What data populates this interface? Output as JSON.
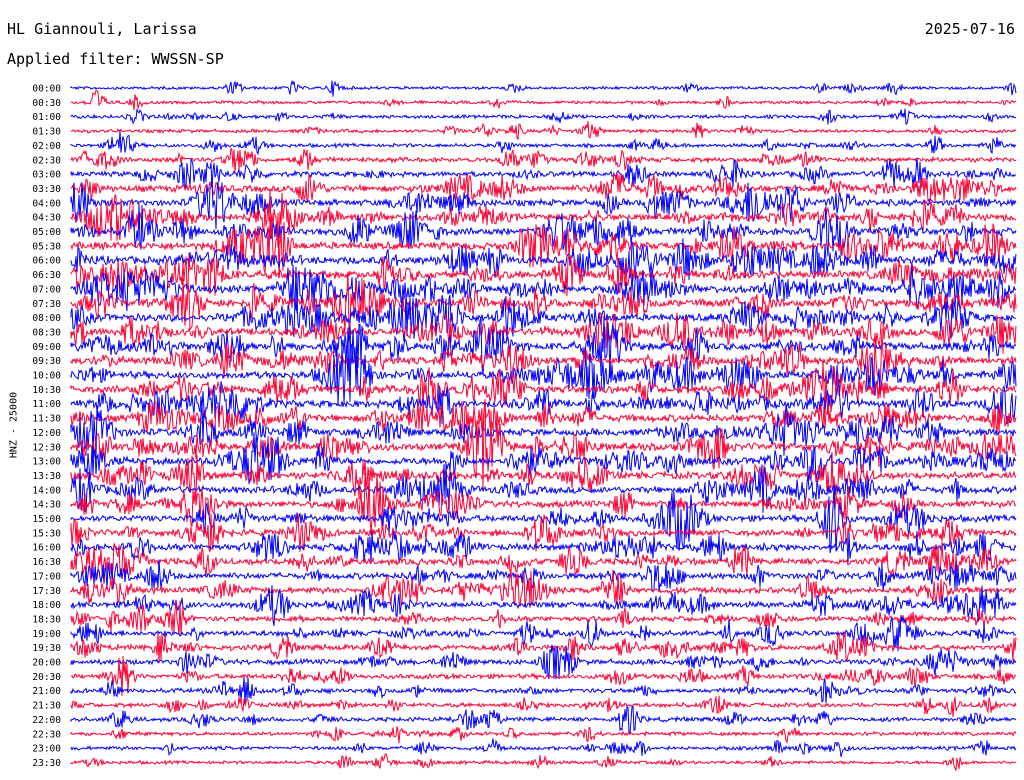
{
  "header": {
    "station": "HL Giannouli, Larissa",
    "date": "2025-07-16",
    "filter": "Applied filter: WWSSN-SP"
  },
  "colors": {
    "even": "#0000ff",
    "odd": "#ff0033"
  },
  "chart_data": {
    "type": "line",
    "title": "HL Giannouli, Larissa",
    "subtitle": "Applied filter: WWSSN-SP",
    "ylabel": "HNZ - 25000",
    "xlabel": "",
    "grid": false,
    "legend": "none",
    "y_tick_labels": [
      "00:00",
      "00:30",
      "01:00",
      "01:30",
      "02:00",
      "02:30",
      "03:00",
      "03:30",
      "04:00",
      "04:30",
      "05:00",
      "05:30",
      "06:00",
      "06:30",
      "07:00",
      "07:30",
      "08:00",
      "08:30",
      "09:00",
      "09:30",
      "10:00",
      "10:30",
      "11:00",
      "11:30",
      "12:00",
      "12:30",
      "13:00",
      "13:30",
      "14:00",
      "14:30",
      "15:00",
      "15:30",
      "16:00",
      "16:30",
      "17:00",
      "17:30",
      "18:00",
      "18:30",
      "19:00",
      "19:30",
      "20:00",
      "20:30",
      "21:00",
      "21:30",
      "22:00",
      "22:30",
      "23:00",
      "23:30"
    ],
    "trace_activity": [
      0.25,
      0.25,
      0.3,
      0.3,
      0.35,
      0.5,
      0.6,
      0.8,
      0.8,
      0.85,
      0.9,
      0.95,
      1.0,
      0.95,
      1.0,
      1.0,
      0.95,
      0.9,
      0.95,
      0.9,
      0.95,
      0.95,
      0.95,
      0.9,
      0.9,
      0.95,
      0.95,
      0.85,
      0.85,
      0.8,
      0.8,
      0.75,
      0.8,
      0.8,
      0.75,
      0.75,
      0.75,
      0.6,
      0.65,
      0.65,
      0.6,
      0.55,
      0.5,
      0.45,
      0.45,
      0.35,
      0.35,
      0.3
    ]
  }
}
